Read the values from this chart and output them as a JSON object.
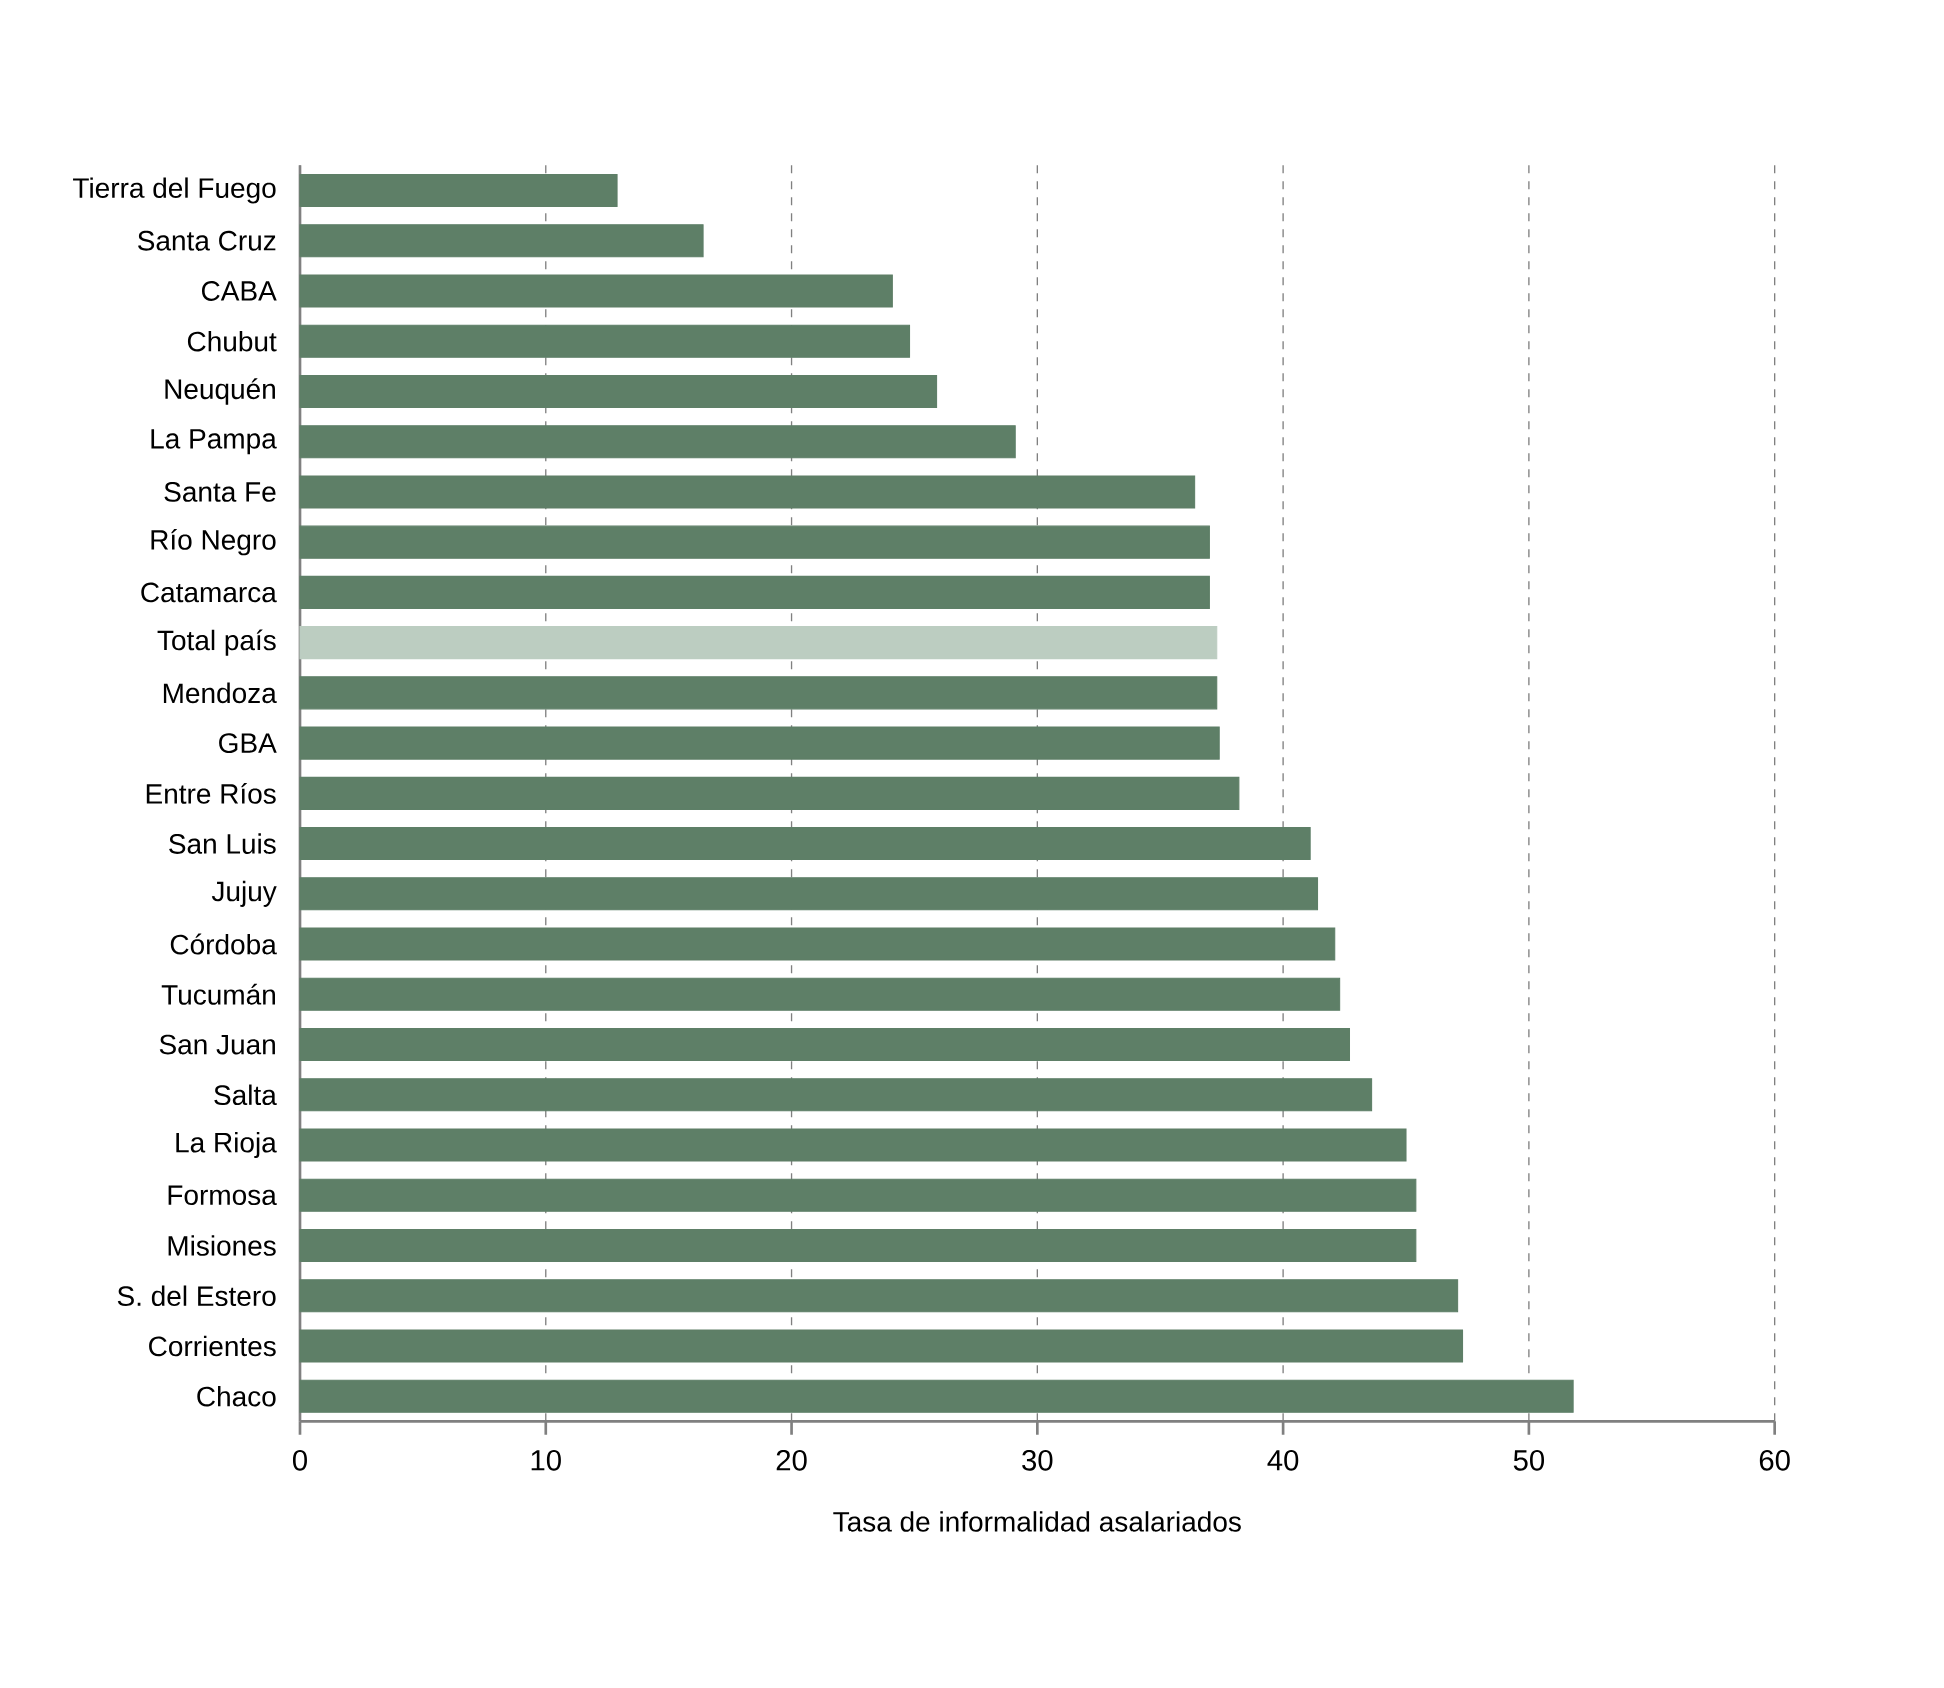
{
  "chart_data": {
    "type": "bar",
    "orientation": "horizontal",
    "xlabel": "Tasa de informalidad asalariados",
    "categories": [
      "Tierra del Fuego",
      "Santa Cruz",
      "CABA",
      "Chubut",
      "Neuquén",
      "La Pampa",
      "Santa Fe",
      "Río  Negro",
      "Catamarca",
      "Total país",
      "Mendoza",
      "GBA",
      "Entre Ríos",
      "San Luis",
      "Jujuy",
      "Córdoba",
      "Tucumán",
      "San Juan",
      "Salta",
      "La Rioja",
      "Formosa",
      "Misiones",
      "S. del Estero",
      "Corrientes",
      "Chaco"
    ],
    "values": [
      12.9,
      16.4,
      24.1,
      24.8,
      25.9,
      29.1,
      36.4,
      37.0,
      37.0,
      37.3,
      37.3,
      37.4,
      38.2,
      41.1,
      41.4,
      42.1,
      42.3,
      42.7,
      43.6,
      45.0,
      45.4,
      45.4,
      47.1,
      47.3,
      51.8
    ],
    "colors": [
      "#5e7f67",
      "#5e7f67",
      "#5e7f67",
      "#5e7f67",
      "#5e7f67",
      "#5e7f67",
      "#5e7f67",
      "#5e7f67",
      "#5e7f67",
      "#bccdc1",
      "#5e7f67",
      "#5e7f67",
      "#5e7f67",
      "#5e7f67",
      "#5e7f67",
      "#5e7f67",
      "#5e7f67",
      "#5e7f67",
      "#5e7f67",
      "#5e7f67",
      "#5e7f67",
      "#5e7f67",
      "#5e7f67",
      "#5e7f67",
      "#5e7f67"
    ],
    "xlim": [
      0,
      60
    ],
    "xticks": [
      0,
      10,
      20,
      30,
      40,
      50,
      60
    ],
    "grid": "x"
  }
}
